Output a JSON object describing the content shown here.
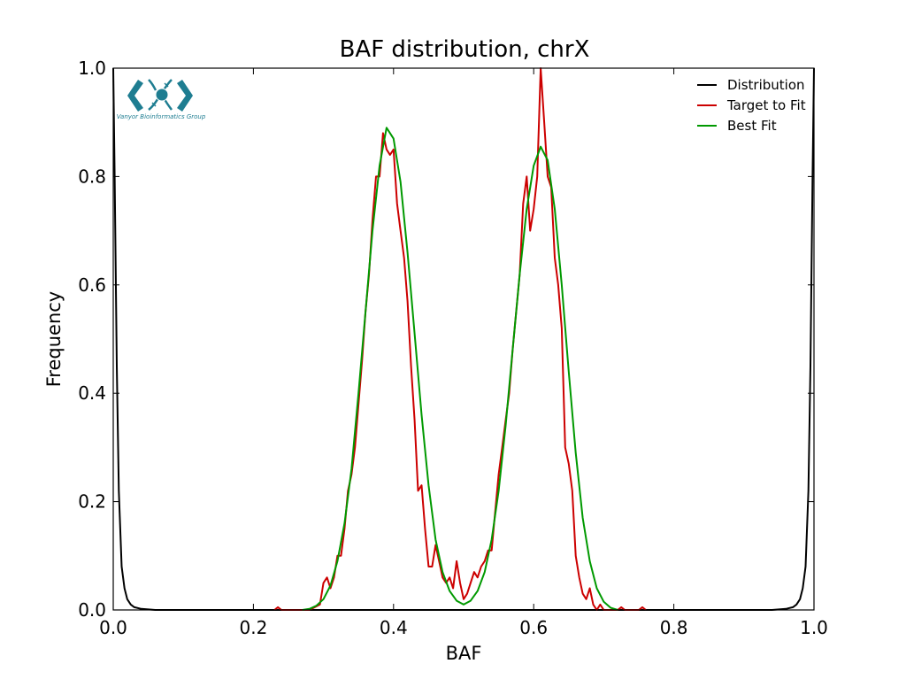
{
  "chart_data": {
    "type": "line",
    "title": "BAF distribution, chrX",
    "xlabel": "BAF",
    "ylabel": "Frequency",
    "xlim": [
      0.0,
      1.0
    ],
    "ylim": [
      0.0,
      1.0
    ],
    "xticks": [
      "0.0",
      "0.2",
      "0.4",
      "0.6",
      "0.8",
      "1.0"
    ],
    "yticks": [
      "0.0",
      "0.2",
      "0.4",
      "0.6",
      "0.8",
      "1.0"
    ],
    "grid": false,
    "legend_position": "top-right",
    "series": [
      {
        "name": "Distribution",
        "color": "#000000",
        "points": [
          [
            0.0,
            1.0
          ],
          [
            0.002,
            0.8
          ],
          [
            0.005,
            0.45
          ],
          [
            0.008,
            0.22
          ],
          [
            0.012,
            0.08
          ],
          [
            0.016,
            0.04
          ],
          [
            0.02,
            0.02
          ],
          [
            0.025,
            0.01
          ],
          [
            0.03,
            0.005
          ],
          [
            0.04,
            0.002
          ],
          [
            0.06,
            0.0
          ],
          [
            0.1,
            0.0
          ],
          [
            0.2,
            0.0
          ],
          [
            0.4,
            0.0
          ],
          [
            0.6,
            0.0
          ],
          [
            0.8,
            0.0
          ],
          [
            0.9,
            0.0
          ],
          [
            0.94,
            0.0
          ],
          [
            0.96,
            0.002
          ],
          [
            0.97,
            0.005
          ],
          [
            0.975,
            0.01
          ],
          [
            0.98,
            0.02
          ],
          [
            0.984,
            0.04
          ],
          [
            0.988,
            0.08
          ],
          [
            0.992,
            0.22
          ],
          [
            0.995,
            0.45
          ],
          [
            0.998,
            0.8
          ],
          [
            1.0,
            1.0
          ]
        ]
      },
      {
        "name": "Target to Fit",
        "color": "#cc0000",
        "points": [
          [
            0.23,
            0.0
          ],
          [
            0.235,
            0.005
          ],
          [
            0.24,
            0.0
          ],
          [
            0.28,
            0.0
          ],
          [
            0.295,
            0.01
          ],
          [
            0.3,
            0.05
          ],
          [
            0.305,
            0.06
          ],
          [
            0.31,
            0.04
          ],
          [
            0.315,
            0.06
          ],
          [
            0.32,
            0.1
          ],
          [
            0.325,
            0.1
          ],
          [
            0.33,
            0.15
          ],
          [
            0.335,
            0.22
          ],
          [
            0.34,
            0.25
          ],
          [
            0.345,
            0.3
          ],
          [
            0.35,
            0.38
          ],
          [
            0.355,
            0.46
          ],
          [
            0.36,
            0.55
          ],
          [
            0.365,
            0.62
          ],
          [
            0.37,
            0.72
          ],
          [
            0.375,
            0.8
          ],
          [
            0.38,
            0.8
          ],
          [
            0.385,
            0.88
          ],
          [
            0.39,
            0.85
          ],
          [
            0.395,
            0.84
          ],
          [
            0.4,
            0.85
          ],
          [
            0.405,
            0.75
          ],
          [
            0.41,
            0.7
          ],
          [
            0.415,
            0.65
          ],
          [
            0.42,
            0.57
          ],
          [
            0.425,
            0.45
          ],
          [
            0.43,
            0.35
          ],
          [
            0.435,
            0.22
          ],
          [
            0.44,
            0.23
          ],
          [
            0.445,
            0.15
          ],
          [
            0.45,
            0.08
          ],
          [
            0.455,
            0.08
          ],
          [
            0.46,
            0.12
          ],
          [
            0.465,
            0.09
          ],
          [
            0.47,
            0.06
          ],
          [
            0.475,
            0.05
          ],
          [
            0.48,
            0.06
          ],
          [
            0.485,
            0.04
          ],
          [
            0.49,
            0.09
          ],
          [
            0.495,
            0.05
          ],
          [
            0.5,
            0.02
          ],
          [
            0.505,
            0.03
          ],
          [
            0.51,
            0.05
          ],
          [
            0.515,
            0.07
          ],
          [
            0.52,
            0.06
          ],
          [
            0.525,
            0.08
          ],
          [
            0.53,
            0.09
          ],
          [
            0.535,
            0.11
          ],
          [
            0.54,
            0.11
          ],
          [
            0.545,
            0.18
          ],
          [
            0.55,
            0.25
          ],
          [
            0.555,
            0.3
          ],
          [
            0.56,
            0.35
          ],
          [
            0.565,
            0.4
          ],
          [
            0.57,
            0.48
          ],
          [
            0.575,
            0.55
          ],
          [
            0.58,
            0.62
          ],
          [
            0.585,
            0.75
          ],
          [
            0.59,
            0.8
          ],
          [
            0.595,
            0.7
          ],
          [
            0.6,
            0.74
          ],
          [
            0.605,
            0.8
          ],
          [
            0.61,
            1.0
          ],
          [
            0.615,
            0.9
          ],
          [
            0.62,
            0.8
          ],
          [
            0.625,
            0.78
          ],
          [
            0.63,
            0.65
          ],
          [
            0.635,
            0.6
          ],
          [
            0.64,
            0.52
          ],
          [
            0.645,
            0.3
          ],
          [
            0.65,
            0.27
          ],
          [
            0.655,
            0.22
          ],
          [
            0.66,
            0.1
          ],
          [
            0.665,
            0.06
          ],
          [
            0.67,
            0.03
          ],
          [
            0.675,
            0.02
          ],
          [
            0.68,
            0.04
          ],
          [
            0.685,
            0.01
          ],
          [
            0.69,
            0.0
          ],
          [
            0.695,
            0.01
          ],
          [
            0.7,
            0.0
          ],
          [
            0.72,
            0.0
          ],
          [
            0.725,
            0.005
          ],
          [
            0.73,
            0.0
          ],
          [
            0.75,
            0.0
          ],
          [
            0.755,
            0.005
          ],
          [
            0.76,
            0.0
          ]
        ]
      },
      {
        "name": "Best Fit",
        "color": "#009900",
        "points": [
          [
            0.27,
            0.0
          ],
          [
            0.28,
            0.002
          ],
          [
            0.29,
            0.008
          ],
          [
            0.3,
            0.02
          ],
          [
            0.31,
            0.045
          ],
          [
            0.32,
            0.09
          ],
          [
            0.33,
            0.16
          ],
          [
            0.34,
            0.26
          ],
          [
            0.35,
            0.4
          ],
          [
            0.36,
            0.55
          ],
          [
            0.37,
            0.7
          ],
          [
            0.38,
            0.82
          ],
          [
            0.39,
            0.89
          ],
          [
            0.4,
            0.87
          ],
          [
            0.41,
            0.79
          ],
          [
            0.42,
            0.66
          ],
          [
            0.43,
            0.51
          ],
          [
            0.44,
            0.36
          ],
          [
            0.45,
            0.23
          ],
          [
            0.46,
            0.13
          ],
          [
            0.47,
            0.07
          ],
          [
            0.48,
            0.035
          ],
          [
            0.49,
            0.017
          ],
          [
            0.5,
            0.01
          ],
          [
            0.51,
            0.017
          ],
          [
            0.52,
            0.035
          ],
          [
            0.53,
            0.07
          ],
          [
            0.54,
            0.13
          ],
          [
            0.55,
            0.22
          ],
          [
            0.56,
            0.34
          ],
          [
            0.57,
            0.48
          ],
          [
            0.58,
            0.62
          ],
          [
            0.59,
            0.74
          ],
          [
            0.6,
            0.82
          ],
          [
            0.61,
            0.855
          ],
          [
            0.62,
            0.83
          ],
          [
            0.63,
            0.74
          ],
          [
            0.64,
            0.6
          ],
          [
            0.65,
            0.44
          ],
          [
            0.66,
            0.29
          ],
          [
            0.67,
            0.17
          ],
          [
            0.68,
            0.09
          ],
          [
            0.69,
            0.04
          ],
          [
            0.7,
            0.015
          ],
          [
            0.71,
            0.004
          ],
          [
            0.72,
            0.0
          ]
        ]
      }
    ]
  },
  "logo": {
    "text": "Vanyor Bioinformatics Group",
    "color": "#1e7d91"
  }
}
